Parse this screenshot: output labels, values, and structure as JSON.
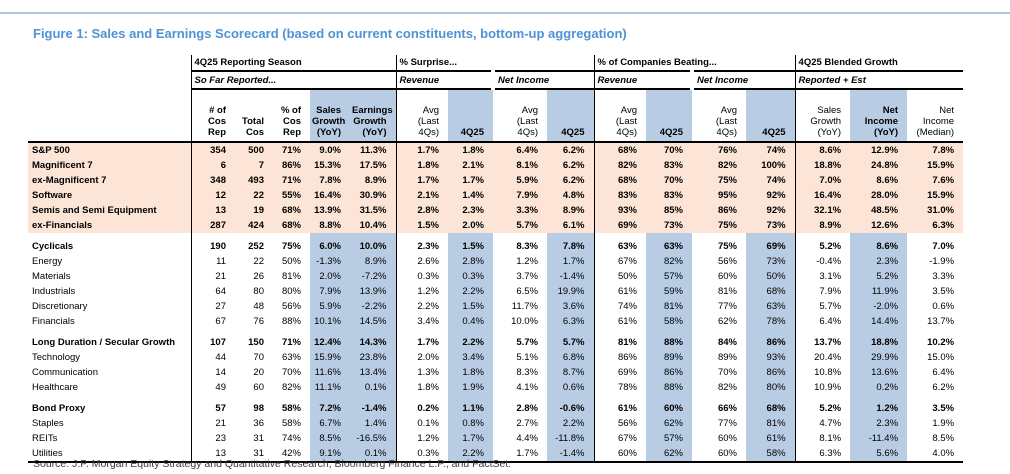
{
  "figure": {
    "title": "Figure 1: Sales and Earnings Scorecard (based on current constituents, bottom-up aggregation)",
    "source": "Source: J.P. Morgan Equity Strategy and Quantitative Research, Bloomberg Finance L.P., and FactSet."
  },
  "colors": {
    "title_blue": "#4d93d6",
    "fill_blue": "#b8cce4",
    "fill_peach": "#fce4d6",
    "rule_blue": "#aac8e8",
    "source_gray": "#3b3b3b"
  },
  "table": {
    "groups": [
      {
        "title": "4Q25 Reporting Season"
      },
      {
        "title": "% Surprise..."
      },
      {
        "title": "% of Companies Beating..."
      },
      {
        "title": "4Q25 Blended Growth"
      }
    ],
    "subheaders": {
      "so_far": "So Far Reported...",
      "revenue_surprise": "Revenue",
      "net_income_surprise": "Net Income",
      "revenue_beating": "Revenue",
      "net_income_beating": "Net Income",
      "reported_est": "Reported + Est"
    },
    "columns": [
      {
        "label": "# of\nCos\nRep"
      },
      {
        "label": "Total\nCos"
      },
      {
        "label": "% of\nCos\nRep"
      },
      {
        "label": "Sales\nGrowth\n(YoY)"
      },
      {
        "label": "Earnings\nGrowth\n(YoY)"
      },
      {
        "label": "Avg\n(Last 4Qs)"
      },
      {
        "label": "4Q25"
      },
      {
        "label": "Avg\n(Last 4Qs)"
      },
      {
        "label": "4Q25"
      },
      {
        "label": "Avg\n(Last 4Qs)"
      },
      {
        "label": "4Q25"
      },
      {
        "label": "Avg\n(Last 4Qs)"
      },
      {
        "label": "4Q25"
      },
      {
        "label": "Sales\nGrowth\n(YoY)"
      },
      {
        "label": "Net Income\n(YoY)"
      },
      {
        "label": "Net\nIncome\n(Median)"
      }
    ],
    "sections": [
      {
        "style": "highlight",
        "rows": [
          {
            "label": "S&P 500",
            "bold": true,
            "values": [
              "354",
              "500",
              "71%",
              "9.0%",
              "11.3%",
              "1.7%",
              "1.8%",
              "6.4%",
              "6.2%",
              "68%",
              "70%",
              "76%",
              "74%",
              "8.6%",
              "12.9%",
              "7.8%"
            ]
          },
          {
            "label": "Magnificent 7",
            "bold": true,
            "values": [
              "6",
              "7",
              "86%",
              "15.3%",
              "17.5%",
              "1.8%",
              "2.1%",
              "8.1%",
              "6.2%",
              "82%",
              "83%",
              "82%",
              "100%",
              "18.8%",
              "24.8%",
              "15.9%"
            ]
          },
          {
            "label": "ex-Magnificent 7",
            "bold": true,
            "values": [
              "348",
              "493",
              "71%",
              "7.8%",
              "8.9%",
              "1.7%",
              "1.7%",
              "5.9%",
              "6.2%",
              "68%",
              "70%",
              "75%",
              "74%",
              "7.0%",
              "8.6%",
              "7.6%"
            ]
          },
          {
            "label": "Software",
            "bold": true,
            "values": [
              "12",
              "22",
              "55%",
              "16.4%",
              "30.9%",
              "2.1%",
              "1.4%",
              "7.9%",
              "4.8%",
              "83%",
              "83%",
              "95%",
              "92%",
              "16.4%",
              "28.0%",
              "15.9%"
            ]
          },
          {
            "label": "Semis and Semi Equipment",
            "bold": true,
            "values": [
              "13",
              "19",
              "68%",
              "13.9%",
              "31.5%",
              "2.8%",
              "2.3%",
              "3.3%",
              "8.9%",
              "93%",
              "85%",
              "86%",
              "92%",
              "32.1%",
              "48.5%",
              "31.0%"
            ]
          },
          {
            "label": "ex-Financials",
            "bold": true,
            "values": [
              "287",
              "424",
              "68%",
              "8.8%",
              "10.4%",
              "1.5%",
              "2.0%",
              "5.7%",
              "6.1%",
              "69%",
              "73%",
              "75%",
              "73%",
              "8.9%",
              "12.6%",
              "6.3%"
            ]
          }
        ]
      },
      {
        "style": "normal",
        "rows": [
          {
            "label": "Cyclicals",
            "bold": true,
            "values": [
              "190",
              "252",
              "75%",
              "6.0%",
              "10.0%",
              "2.3%",
              "1.5%",
              "8.3%",
              "7.8%",
              "63%",
              "63%",
              "75%",
              "69%",
              "5.2%",
              "8.6%",
              "7.0%"
            ]
          },
          {
            "label": "Energy",
            "bold": false,
            "values": [
              "11",
              "22",
              "50%",
              "-1.3%",
              "8.9%",
              "2.6%",
              "2.8%",
              "1.2%",
              "1.7%",
              "67%",
              "82%",
              "56%",
              "73%",
              "-0.4%",
              "2.3%",
              "-1.9%"
            ]
          },
          {
            "label": "Materials",
            "bold": false,
            "values": [
              "21",
              "26",
              "81%",
              "2.0%",
              "-7.2%",
              "0.3%",
              "0.3%",
              "3.7%",
              "-1.4%",
              "50%",
              "57%",
              "60%",
              "50%",
              "3.1%",
              "5.2%",
              "3.3%"
            ]
          },
          {
            "label": "Industrials",
            "bold": false,
            "values": [
              "64",
              "80",
              "80%",
              "7.9%",
              "13.9%",
              "1.2%",
              "2.2%",
              "6.5%",
              "19.9%",
              "61%",
              "59%",
              "81%",
              "68%",
              "7.9%",
              "11.9%",
              "3.5%"
            ]
          },
          {
            "label": "Discretionary",
            "bold": false,
            "values": [
              "27",
              "48",
              "56%",
              "5.9%",
              "-2.2%",
              "2.2%",
              "1.5%",
              "11.7%",
              "3.6%",
              "74%",
              "81%",
              "77%",
              "63%",
              "5.7%",
              "-2.0%",
              "0.6%"
            ]
          },
          {
            "label": "Financials",
            "bold": false,
            "values": [
              "67",
              "76",
              "88%",
              "10.1%",
              "14.5%",
              "3.4%",
              "0.4%",
              "10.0%",
              "6.3%",
              "61%",
              "58%",
              "62%",
              "78%",
              "6.4%",
              "14.4%",
              "13.7%"
            ]
          }
        ]
      },
      {
        "style": "normal",
        "rows": [
          {
            "label": "Long Duration / Secular Growth",
            "bold": true,
            "values": [
              "107",
              "150",
              "71%",
              "12.4%",
              "14.3%",
              "1.7%",
              "2.2%",
              "5.7%",
              "5.7%",
              "81%",
              "88%",
              "84%",
              "86%",
              "13.7%",
              "18.8%",
              "10.2%"
            ]
          },
          {
            "label": "Technology",
            "bold": false,
            "values": [
              "44",
              "70",
              "63%",
              "15.9%",
              "23.8%",
              "2.0%",
              "3.4%",
              "5.1%",
              "6.8%",
              "86%",
              "89%",
              "89%",
              "93%",
              "20.4%",
              "29.9%",
              "15.0%"
            ]
          },
          {
            "label": "Communication",
            "bold": false,
            "values": [
              "14",
              "20",
              "70%",
              "11.6%",
              "13.4%",
              "1.3%",
              "1.8%",
              "8.3%",
              "8.7%",
              "69%",
              "86%",
              "70%",
              "86%",
              "10.8%",
              "13.6%",
              "6.4%"
            ]
          },
          {
            "label": "Healthcare",
            "bold": false,
            "values": [
              "49",
              "60",
              "82%",
              "11.1%",
              "0.1%",
              "1.8%",
              "1.9%",
              "4.1%",
              "0.6%",
              "78%",
              "88%",
              "82%",
              "80%",
              "10.9%",
              "0.2%",
              "6.2%"
            ]
          }
        ]
      },
      {
        "style": "normal",
        "rows": [
          {
            "label": "Bond Proxy",
            "bold": true,
            "values": [
              "57",
              "98",
              "58%",
              "7.2%",
              "-1.4%",
              "0.2%",
              "1.1%",
              "2.8%",
              "-0.6%",
              "61%",
              "60%",
              "66%",
              "68%",
              "5.2%",
              "1.2%",
              "3.5%"
            ]
          },
          {
            "label": "Staples",
            "bold": false,
            "values": [
              "21",
              "36",
              "58%",
              "6.7%",
              "1.4%",
              "0.1%",
              "0.8%",
              "2.7%",
              "2.2%",
              "56%",
              "62%",
              "77%",
              "81%",
              "4.7%",
              "2.3%",
              "1.9%"
            ]
          },
          {
            "label": "REITs",
            "bold": false,
            "values": [
              "23",
              "31",
              "74%",
              "8.5%",
              "-16.5%",
              "1.2%",
              "1.7%",
              "4.4%",
              "-11.8%",
              "67%",
              "57%",
              "60%",
              "61%",
              "8.1%",
              "-11.4%",
              "8.5%"
            ]
          },
          {
            "label": "Utilities",
            "bold": false,
            "values": [
              "13",
              "31",
              "42%",
              "9.1%",
              "0.1%",
              "0.3%",
              "2.2%",
              "1.7%",
              "-1.4%",
              "60%",
              "62%",
              "60%",
              "58%",
              "6.3%",
              "5.6%",
              "4.0%"
            ]
          }
        ]
      }
    ]
  }
}
